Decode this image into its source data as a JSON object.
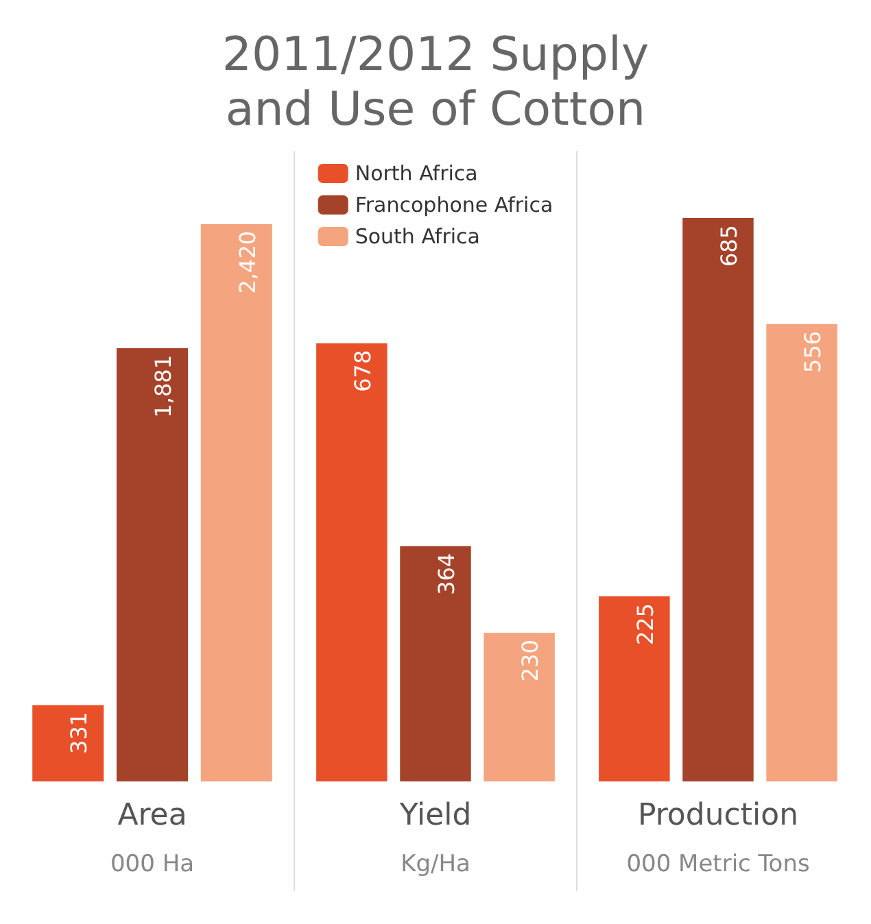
{
  "chart_data": [
    {
      "type": "bar",
      "title": "2011/2012 Supply and Use of Cotton",
      "categories": [
        "Area"
      ],
      "xlabel": "000 Ha",
      "series": [
        {
          "color": "#e8502a",
          "values": [
            331
          ],
          "value_labels": [
            "331"
          ]
        },
        {
          "color": "#a5432a",
          "values": [
            1881
          ],
          "value_labels": [
            "1,881"
          ]
        },
        {
          "color": "#f4a47e",
          "values": [
            2420
          ],
          "value_labels": [
            "2,420"
          ]
        }
      ]
    },
    {
      "type": "bar",
      "categories": [
        "Yield"
      ],
      "xlabel": "Kg/Ha",
      "data_labels": true,
      "legend": "top",
      "series": [
        {
          "name": "North Africa",
          "color": "#e8502a",
          "values": [
            678
          ]
        },
        {
          "name": "Francophone Africa",
          "color": "#a5432a",
          "values": [
            364
          ]
        },
        {
          "name": "South Africa",
          "color": "#f4a47e",
          "values": [
            230
          ]
        }
      ]
    },
    {
      "type": "bar",
      "categories": [
        "Production"
      ],
      "xlabel": "000 Metric Tons",
      "data_labels": true,
      "series": [
        {
          "color": "#e8502a",
          "values": [
            225
          ]
        },
        {
          "color": "#a5432a",
          "values": [
            685
          ]
        },
        {
          "color": "#f4a47e",
          "values": [
            556
          ]
        }
      ]
    }
  ]
}
